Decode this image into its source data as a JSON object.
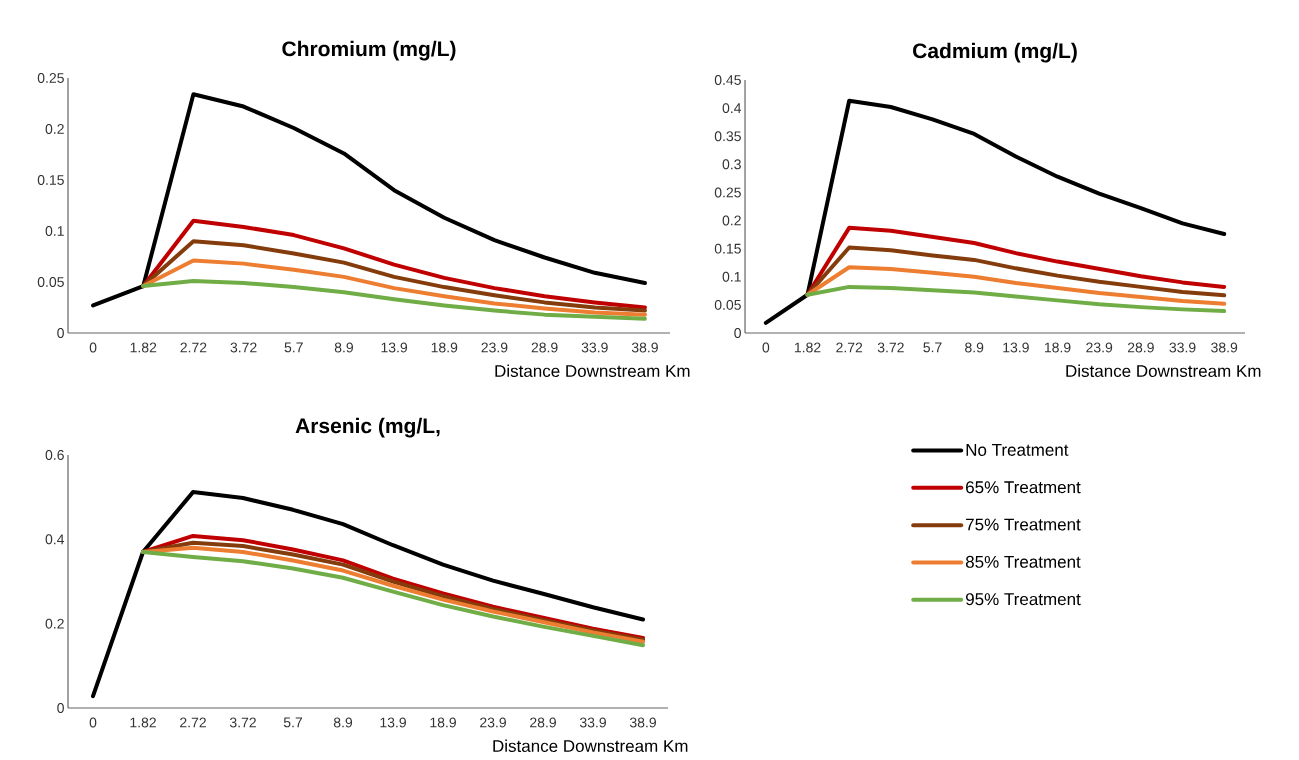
{
  "chart_data": [
    {
      "type": "line",
      "title": "Chromium (mg/L)",
      "xlabel": "Distance Downstream Km",
      "categories": [
        "0",
        "1.82",
        "2.72",
        "3.72",
        "5.7",
        "8.9",
        "13.9",
        "18.9",
        "23.9",
        "28.9",
        "33.9",
        "38.9"
      ],
      "ylim": [
        0,
        0.25
      ],
      "yticks": [
        0,
        0.05,
        0.1,
        0.15,
        0.2,
        0.25
      ],
      "grid": false,
      "legend": false,
      "series": [
        {
          "color": "#000000",
          "values": [
            0.027,
            0.046,
            0.234,
            0.222,
            0.201,
            0.176,
            0.14,
            0.113,
            0.091,
            0.074,
            0.059,
            0.049
          ]
        },
        {
          "color": "#c00000",
          "values": [
            null,
            0.046,
            0.11,
            0.104,
            0.096,
            0.083,
            0.067,
            0.054,
            0.044,
            0.036,
            0.03,
            0.025
          ]
        },
        {
          "color": "#843c0c",
          "values": [
            null,
            0.046,
            0.09,
            0.086,
            0.078,
            0.069,
            0.055,
            0.045,
            0.037,
            0.03,
            0.025,
            0.022
          ]
        },
        {
          "color": "#ed7d31",
          "values": [
            null,
            0.046,
            0.071,
            0.068,
            0.062,
            0.055,
            0.044,
            0.036,
            0.029,
            0.024,
            0.02,
            0.018
          ]
        },
        {
          "color": "#70ad47",
          "values": [
            null,
            0.046,
            0.051,
            0.049,
            0.045,
            0.04,
            0.033,
            0.027,
            0.022,
            0.018,
            0.016,
            0.014
          ]
        }
      ]
    },
    {
      "type": "line",
      "title": "Cadmium (mg/L)",
      "xlabel": "Distance Downstream Km",
      "categories": [
        "0",
        "1.82",
        "2.72",
        "3.72",
        "5.7",
        "8.9",
        "13.9",
        "18.9",
        "23.9",
        "28.9",
        "33.9",
        "38.9"
      ],
      "ylim": [
        0,
        0.45
      ],
      "yticks": [
        0,
        0.05,
        0.1,
        0.15,
        0.2,
        0.25,
        0.3,
        0.35,
        0.4,
        0.45
      ],
      "grid": false,
      "legend": false,
      "series": [
        {
          "color": "#000000",
          "values": [
            0.018,
            0.068,
            0.413,
            0.402,
            0.38,
            0.354,
            0.314,
            0.278,
            0.248,
            0.222,
            0.195,
            0.176
          ]
        },
        {
          "color": "#c00000",
          "values": [
            null,
            0.068,
            0.187,
            0.182,
            0.171,
            0.16,
            0.142,
            0.127,
            0.114,
            0.101,
            0.09,
            0.082
          ]
        },
        {
          "color": "#843c0c",
          "values": [
            null,
            0.068,
            0.152,
            0.147,
            0.138,
            0.13,
            0.115,
            0.102,
            0.091,
            0.082,
            0.073,
            0.067
          ]
        },
        {
          "color": "#ed7d31",
          "values": [
            null,
            0.068,
            0.117,
            0.114,
            0.107,
            0.1,
            0.089,
            0.08,
            0.071,
            0.064,
            0.057,
            0.052
          ]
        },
        {
          "color": "#70ad47",
          "values": [
            null,
            0.068,
            0.082,
            0.08,
            0.076,
            0.072,
            0.065,
            0.058,
            0.051,
            0.046,
            0.042,
            0.039
          ]
        }
      ]
    },
    {
      "type": "line",
      "title": "Arsenic (mg/L,",
      "xlabel": "Distance Downstream Km",
      "categories": [
        "0",
        "1.82",
        "2.72",
        "3.72",
        "5.7",
        "8.9",
        "13.9",
        "18.9",
        "23.9",
        "28.9",
        "33.9",
        "38.9"
      ],
      "ylim": [
        0,
        0.6
      ],
      "yticks": [
        0,
        0.2,
        0.4,
        0.6
      ],
      "grid": false,
      "legend": "right",
      "series": [
        {
          "name": "No Treatment",
          "color": "#000000",
          "values": [
            0.028,
            0.37,
            0.512,
            0.498,
            0.47,
            0.436,
            0.386,
            0.34,
            0.302,
            0.271,
            0.239,
            0.21
          ]
        },
        {
          "name": "65% Treatment",
          "color": "#c00000",
          "values": [
            null,
            0.37,
            0.408,
            0.398,
            0.376,
            0.35,
            0.307,
            0.272,
            0.24,
            0.214,
            0.188,
            0.166
          ]
        },
        {
          "name": "75% Treatment",
          "color": "#843c0c",
          "values": [
            null,
            0.37,
            0.392,
            0.384,
            0.364,
            0.34,
            0.3,
            0.265,
            0.235,
            0.209,
            0.184,
            0.162
          ]
        },
        {
          "name": "85% Treatment",
          "color": "#ed7d31",
          "values": [
            null,
            0.37,
            0.38,
            0.37,
            0.35,
            0.326,
            0.29,
            0.257,
            0.229,
            0.204,
            0.179,
            0.157
          ]
        },
        {
          "name": "95% Treatment",
          "color": "#70ad47",
          "values": [
            null,
            0.37,
            0.358,
            0.348,
            0.331,
            0.309,
            0.276,
            0.244,
            0.217,
            0.193,
            0.171,
            0.149
          ]
        }
      ]
    }
  ]
}
